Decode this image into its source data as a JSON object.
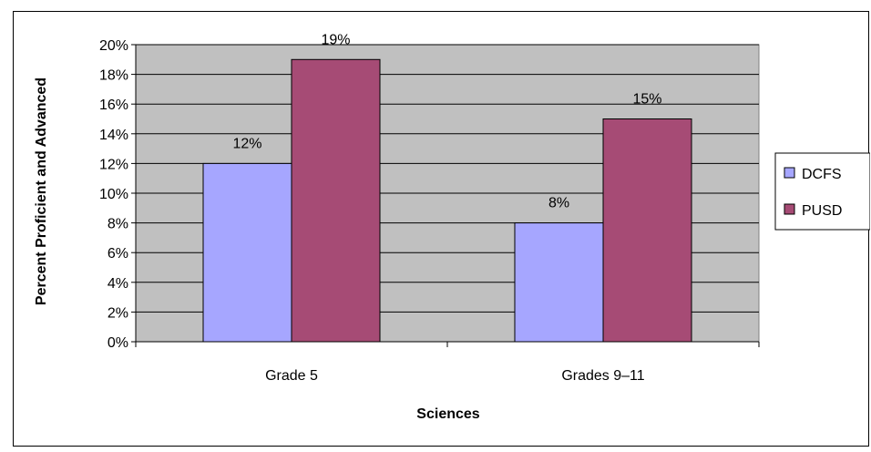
{
  "chart_data": {
    "type": "bar",
    "categories": [
      "Grade 5",
      "Grades 9–11"
    ],
    "series": [
      {
        "name": "DCFS",
        "values": [
          12,
          8
        ],
        "color": "#a6a6ff"
      },
      {
        "name": "PUSD",
        "values": [
          19,
          15
        ],
        "color": "#a64b75"
      }
    ],
    "data_labels": [
      [
        "12%",
        "8%"
      ],
      [
        "19%",
        "15%"
      ]
    ],
    "ylim": [
      0,
      20
    ],
    "yticks": [
      0,
      2,
      4,
      6,
      8,
      10,
      12,
      14,
      16,
      18,
      20
    ],
    "ytick_labels": [
      "0%",
      "2%",
      "4%",
      "6%",
      "8%",
      "10%",
      "12%",
      "14%",
      "16%",
      "18%",
      "20%"
    ],
    "xlabel": "Sciences",
    "ylabel": "Percent Proficient and Advanced",
    "grid": true,
    "plot_background": "#c0c0c0",
    "legend_position": "right"
  }
}
